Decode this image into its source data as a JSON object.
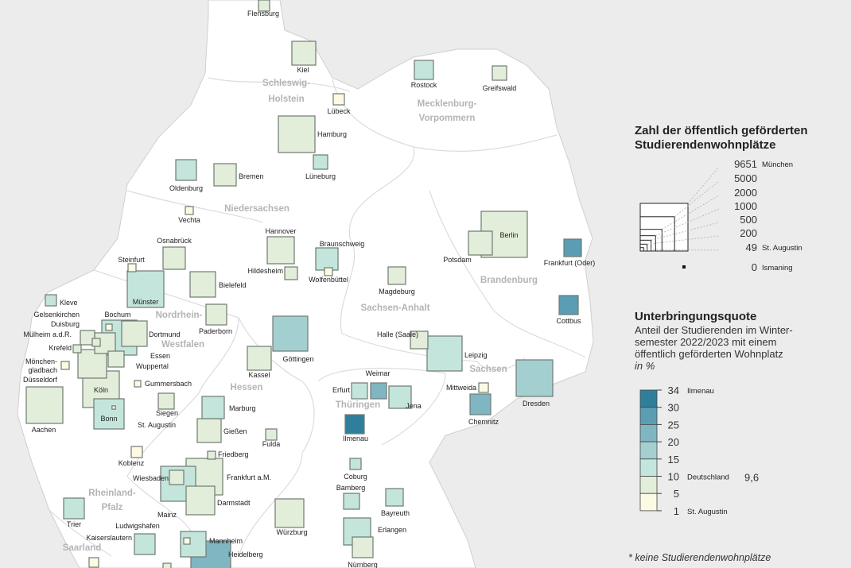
{
  "legend_size": {
    "title_line1": "Zahl der öffentlich geförderten",
    "title_line2": "Studierendenwohnplätze",
    "steps": [
      {
        "value": 9651,
        "label": "9651",
        "note": "München"
      },
      {
        "value": 5000,
        "label": "5000",
        "note": ""
      },
      {
        "value": 2000,
        "label": "2000",
        "note": ""
      },
      {
        "value": 1000,
        "label": "1000",
        "note": ""
      },
      {
        "value": 500,
        "label": "500",
        "note": ""
      },
      {
        "value": 200,
        "label": "200",
        "note": ""
      },
      {
        "value": 49,
        "label": "49",
        "note": "St. Augustin"
      }
    ],
    "zero": {
      "value": 0,
      "label": "0",
      "note": "Ismaning"
    }
  },
  "legend_color": {
    "title": "Unterbringungsquote",
    "sub1": "Anteil der Studierenden im Winter-",
    "sub2": "semester 2022/2023 mit einem",
    "sub3": "öffentlich geförderten Wohnplatz",
    "unit": "in %",
    "ticks": [
      {
        "label": "34",
        "note": "Ilmenau"
      },
      {
        "label": "30",
        "note": ""
      },
      {
        "label": "25",
        "note": ""
      },
      {
        "label": "20",
        "note": ""
      },
      {
        "label": "15",
        "note": ""
      },
      {
        "label": "10",
        "note": "Deutschland"
      },
      {
        "label": "5",
        "note": ""
      },
      {
        "label": "1",
        "note": "St. Augustin"
      }
    ],
    "germany_value": "9,6",
    "bands": [
      {
        "range": "30-34",
        "color": "#2f7f9c"
      },
      {
        "range": "25-30",
        "color": "#5b9db2"
      },
      {
        "range": "20-25",
        "color": "#7fb6c2"
      },
      {
        "range": "15-20",
        "color": "#a3cfd0"
      },
      {
        "range": "10-15",
        "color": "#c3e5dc"
      },
      {
        "range": "5-10",
        "color": "#e2eed9"
      },
      {
        "range": "1-5",
        "color": "#fcfae3"
      }
    ]
  },
  "footnote": "* keine Studierendenwohnplätze",
  "regions": [
    "Schleswig-",
    "Holstein",
    "Mecklenburg-",
    "Vorpommern",
    "Niedersachsen",
    "Brandenburg",
    "Sachsen-Anhalt",
    "Nordrhein-",
    "Westfalen",
    "Hessen",
    "Thüringen",
    "Sachsen",
    "Rheinland-",
    "Pfalz",
    "Saarland"
  ],
  "cities": [
    {
      "name": "Flensburg",
      "band": "5-10",
      "places": 526
    },
    {
      "name": "Kiel",
      "band": "5-10",
      "places": 2413
    },
    {
      "name": "Rostock",
      "band": "10-15",
      "places": 1544
    },
    {
      "name": "Greifswald",
      "band": "5-10",
      "places": 869
    },
    {
      "name": "Lübeck",
      "band": "1-5",
      "places": 526
    },
    {
      "name": "Hamburg",
      "band": "5-10",
      "places": 5672
    },
    {
      "name": "Bremen",
      "band": "5-10",
      "places": 2102
    },
    {
      "name": "Oldenburg",
      "band": "10-15",
      "places": 1812
    },
    {
      "name": "Lüneburg",
      "band": "10-15",
      "places": 869
    },
    {
      "name": "Vechta",
      "band": "1-5",
      "places": 268
    },
    {
      "name": "Osnabrück",
      "band": "5-10",
      "places": 2102
    },
    {
      "name": "Steinfurt",
      "band": "1-5",
      "places": 268
    },
    {
      "name": "Münster",
      "band": "10-15",
      "places": 5672
    },
    {
      "name": "Bielefeld",
      "band": "5-10",
      "places": 2745
    },
    {
      "name": "Hannover",
      "band": "5-10",
      "places": 3099
    },
    {
      "name": "Hildesheim",
      "band": "5-10",
      "places": 686
    },
    {
      "name": "Braunschweig",
      "band": "10-15",
      "places": 2102
    },
    {
      "name": "Wolfenbüttel",
      "band": "1-5",
      "places": 268
    },
    {
      "name": "Magdeburg",
      "band": "5-10",
      "places": 1297
    },
    {
      "name": "Berlin",
      "band": "5-10",
      "places": 9018
    },
    {
      "name": "Potsdam",
      "band": "5-10",
      "places": 2413
    },
    {
      "name": "Frankfurt (Oder)",
      "band": "25-30",
      "places": 1297
    },
    {
      "name": "Cottbus",
      "band": "25-30",
      "places": 1544
    },
    {
      "name": "Kleve",
      "band": "10-15",
      "places": 526
    },
    {
      "name": "Paderborn",
      "band": "5-10",
      "places": 1812
    },
    {
      "name": "Bochum",
      "band": "10-15",
      "places": 5190
    },
    {
      "name": "Dortmund",
      "band": "5-10",
      "places": 2745
    },
    {
      "name": "Gelsenkirchen",
      "band": "1-5",
      "places": 172
    },
    {
      "name": "Duisburg",
      "band": "5-10",
      "places": 869
    },
    {
      "name": "Essen",
      "band": "5-10",
      "places": 1812
    },
    {
      "name": "Mülheim a.d.R.",
      "band": "5-10",
      "places": 268
    },
    {
      "name": "Krefeld",
      "band": "5-10",
      "places": 268
    },
    {
      "name": "Düsseldorf",
      "band": "5-10",
      "places": 3474
    },
    {
      "name": "Mönchen-gladbach",
      "band": "1-5",
      "places": 268
    },
    {
      "name": "Wuppertal",
      "band": "5-10",
      "places": 1072
    },
    {
      "name": "Köln",
      "band": "5-10",
      "places": 5672
    },
    {
      "name": "Bonn",
      "band": "10-15",
      "places": 3871
    },
    {
      "name": "St. Augustin",
      "band": "1-5",
      "places": 49
    },
    {
      "name": "Aachen",
      "band": "5-10",
      "places": 5672
    },
    {
      "name": "Gummersbach",
      "band": "1-5",
      "places": 172
    },
    {
      "name": "Siegen",
      "band": "5-10",
      "places": 1072
    },
    {
      "name": "Göttingen",
      "band": "15-20",
      "places": 5190
    },
    {
      "name": "Kassel",
      "band": "5-10",
      "places": 2413
    },
    {
      "name": "Marburg",
      "band": "10-15",
      "places": 2102
    },
    {
      "name": "Gießen",
      "band": "5-10",
      "places": 2413
    },
    {
      "name": "Fulda",
      "band": "5-10",
      "places": 526
    },
    {
      "name": "Halle (Saale)",
      "band": "5-10",
      "places": 1297
    },
    {
      "name": "Leipzig",
      "band": "10-15",
      "places": 5190
    },
    {
      "name": "Dresden",
      "band": "15-20",
      "places": 5672
    },
    {
      "name": "Mittweida",
      "band": "1-5",
      "places": 386
    },
    {
      "name": "Chemnitz",
      "band": "20-25",
      "places": 1812
    },
    {
      "name": "Erfurt",
      "band": "10-15",
      "places": 1072
    },
    {
      "name": "Weimar",
      "band": "20-25",
      "places": 1072
    },
    {
      "name": "Jena",
      "band": "10-15",
      "places": 2102
    },
    {
      "name": "Ilmenau",
      "band": "30-34",
      "places": 1544
    },
    {
      "name": "Coburg",
      "band": "10-15",
      "places": 526
    },
    {
      "name": "Bamberg",
      "band": "10-15",
      "places": 1072
    },
    {
      "name": "Bayreuth",
      "band": "10-15",
      "places": 1297
    },
    {
      "name": "Erlangen",
      "band": "10-15",
      "places": 3099
    },
    {
      "name": "Nürnberg",
      "band": "5-10",
      "places": 1812
    },
    {
      "name": "Würzburg",
      "band": "5-10",
      "places": 3474
    },
    {
      "name": "Koblenz",
      "band": "1-5",
      "places": 526
    },
    {
      "name": "Friedberg",
      "band": "5-10",
      "places": 268
    },
    {
      "name": "Frankfurt a.M.",
      "band": "5-10",
      "places": 5672
    },
    {
      "name": "Mainz",
      "band": "10-15",
      "places": 5190
    },
    {
      "name": "Wiesbaden",
      "band": "5-10",
      "places": 869
    },
    {
      "name": "Darmstadt",
      "band": "5-10",
      "places": 3474
    },
    {
      "name": "Trier",
      "band": "10-15",
      "places": 1812
    },
    {
      "name": "Kaiserslautern",
      "band": "10-15",
      "places": 1812
    },
    {
      "name": "Heidelberg",
      "band": "20-25",
      "places": 6702
    },
    {
      "name": "Mannheim",
      "band": "10-15",
      "places": 2745
    },
    {
      "name": "Ludwigshafen",
      "band": "1-5",
      "places": 172
    }
  ]
}
